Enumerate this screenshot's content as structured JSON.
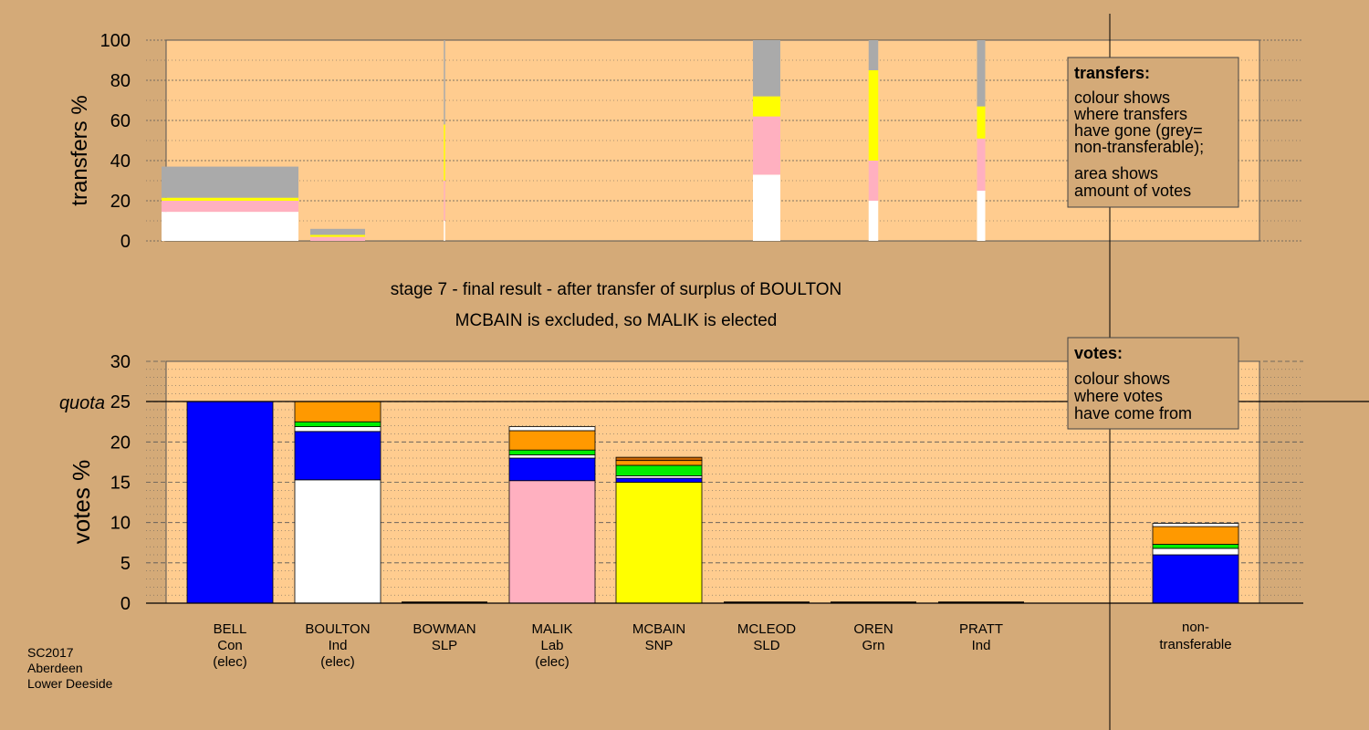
{
  "colors": {
    "background": "#d4aa78",
    "plot_bg": "#ffcc8f",
    "Con": "#0000ff",
    "Ind": "#ffffff",
    "Lab": "#ffb0c0",
    "SNP": "#ffff00",
    "SLD": "#ff9900",
    "Grn": "#00ee00",
    "SLP": "#cc6600",
    "nontransferable": "#aaaaaa"
  },
  "titles": {
    "stage": "stage 7 - final result - after transfer of surplus of BOULTON",
    "outcome": "MCBAIN is excluded, so MALIK is elected"
  },
  "footer": [
    "SC2017",
    "Aberdeen",
    "Lower Deeside"
  ],
  "legend_transfers": {
    "heading": "transfers:",
    "lines": [
      "colour shows",
      "where transfers",
      "have gone (grey=",
      "non-transferable);",
      "area shows",
      "amount of votes"
    ]
  },
  "legend_votes": {
    "heading": "votes:",
    "lines": [
      "colour shows",
      "where votes",
      "have come from"
    ]
  },
  "candidates": [
    {
      "name": "BELL",
      "party": "Con",
      "status": "(elec)"
    },
    {
      "name": "BOULTON",
      "party": "Ind",
      "status": "(elec)"
    },
    {
      "name": "BOWMAN",
      "party": "SLP",
      "status": ""
    },
    {
      "name": "MALIK",
      "party": "Lab",
      "status": "(elec)"
    },
    {
      "name": "MCBAIN",
      "party": "SNP",
      "status": ""
    },
    {
      "name": "MCLEOD",
      "party": "SLD",
      "status": ""
    },
    {
      "name": "OREN",
      "party": "Grn",
      "status": ""
    },
    {
      "name": "PRATT",
      "party": "Ind",
      "status": ""
    }
  ],
  "nontransferable_label": [
    "non-",
    "transferable"
  ],
  "chart_data": [
    {
      "type": "bar",
      "name": "transfers",
      "ylabel": "transfers %",
      "ylim": [
        0,
        100
      ],
      "yticks": [
        0,
        20,
        40,
        60,
        80,
        100
      ],
      "grid": true,
      "columns": [
        {
          "candidate": "BELL",
          "width_share": 1.0,
          "segments": [
            {
              "color": "Ind",
              "value": 14.5
            },
            {
              "color": "Lab",
              "value": 5.5
            },
            {
              "color": "SNP",
              "value": 1.5
            },
            {
              "color": "nontransferable",
              "value": 15.5
            }
          ]
        },
        {
          "candidate": "BOULTON",
          "width_share": 0.4,
          "segments": [
            {
              "color": "Lab",
              "value": 2.0
            },
            {
              "color": "SNP",
              "value": 1.0
            },
            {
              "color": "nontransferable",
              "value": 3.0
            }
          ]
        },
        {
          "candidate": "BOWMAN",
          "width_share": 0.01,
          "segments": [
            {
              "color": "Ind",
              "value": 10
            },
            {
              "color": "Lab",
              "value": 20
            },
            {
              "color": "SNP",
              "value": 28
            },
            {
              "color": "nontransferable",
              "value": 42
            }
          ]
        },
        {
          "candidate": "MCLEOD",
          "width_share": 0.2,
          "segments": [
            {
              "color": "Ind",
              "value": 33
            },
            {
              "color": "Lab",
              "value": 29
            },
            {
              "color": "SNP",
              "value": 10
            },
            {
              "color": "nontransferable",
              "value": 28
            }
          ]
        },
        {
          "candidate": "OREN",
          "width_share": 0.07,
          "segments": [
            {
              "color": "Ind",
              "value": 20
            },
            {
              "color": "Lab",
              "value": 20
            },
            {
              "color": "SNP",
              "value": 45
            },
            {
              "color": "nontransferable",
              "value": 15
            }
          ]
        },
        {
          "candidate": "PRATT",
          "width_share": 0.06,
          "segments": [
            {
              "color": "Ind",
              "value": 25
            },
            {
              "color": "Lab",
              "value": 26
            },
            {
              "color": "SNP",
              "value": 16
            },
            {
              "color": "nontransferable",
              "value": 33
            }
          ]
        }
      ]
    },
    {
      "type": "bar",
      "name": "votes",
      "ylabel": "votes %",
      "quota_label": "quota",
      "quota": 25,
      "ylim": [
        0,
        30
      ],
      "yticks": [
        0,
        5,
        10,
        15,
        20,
        25,
        30
      ],
      "grid": true,
      "columns": [
        {
          "candidate": "BELL",
          "segments": [
            {
              "color": "Con",
              "value": 25.0
            }
          ]
        },
        {
          "candidate": "BOULTON",
          "segments": [
            {
              "color": "Ind",
              "value": 15.3
            },
            {
              "color": "Con",
              "value": 6.0
            },
            {
              "color": "Ind",
              "value": 0.6
            },
            {
              "color": "Grn",
              "value": 0.6
            },
            {
              "color": "SLD",
              "value": 2.5
            }
          ]
        },
        {
          "candidate": "BOWMAN",
          "segments": []
        },
        {
          "candidate": "MALIK",
          "segments": [
            {
              "color": "Lab",
              "value": 15.2
            },
            {
              "color": "Con",
              "value": 2.8
            },
            {
              "color": "Ind",
              "value": 0.4
            },
            {
              "color": "Grn",
              "value": 0.6
            },
            {
              "color": "SLD",
              "value": 2.4
            },
            {
              "color": "Ind",
              "value": 0.5
            }
          ]
        },
        {
          "candidate": "MCBAIN",
          "segments": [
            {
              "color": "SNP",
              "value": 15.0
            },
            {
              "color": "Con",
              "value": 0.5
            },
            {
              "color": "Ind",
              "value": 0.3
            },
            {
              "color": "Grn",
              "value": 1.3
            },
            {
              "color": "SLD",
              "value": 0.6
            },
            {
              "color": "SLP",
              "value": 0.4
            }
          ]
        },
        {
          "candidate": "MCLEOD",
          "segments": []
        },
        {
          "candidate": "OREN",
          "segments": []
        },
        {
          "candidate": "PRATT",
          "segments": []
        },
        {
          "candidate": "non-transferable",
          "segments": [
            {
              "color": "Con",
              "value": 6.0
            },
            {
              "color": "Ind",
              "value": 0.8
            },
            {
              "color": "Grn",
              "value": 0.5
            },
            {
              "color": "SLD",
              "value": 2.2
            },
            {
              "color": "Ind",
              "value": 0.4
            }
          ]
        }
      ]
    }
  ]
}
